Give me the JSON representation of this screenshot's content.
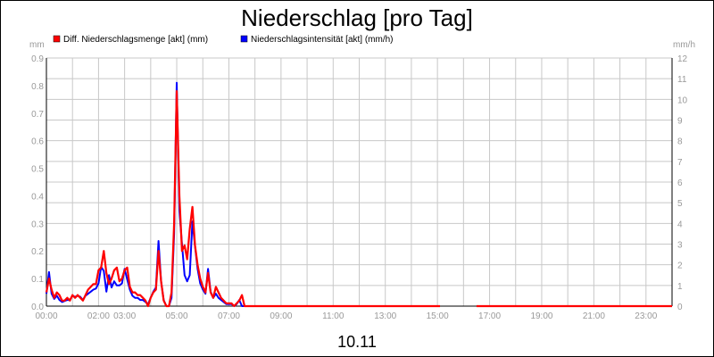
{
  "chart_data": {
    "type": "line",
    "title": "Niederschlag [pro Tag]",
    "ylabel_left": "mm",
    "ylabel_right": "mm/h",
    "date_label": "10.11",
    "ylim_left": [
      0,
      0.9
    ],
    "ylim_right": [
      0,
      12
    ],
    "xlim_hours": [
      0,
      24
    ],
    "yticks_left": [
      "0.0",
      "0.1",
      "0.2",
      "0.3",
      "0.4",
      "0.5",
      "0.6",
      "0.7",
      "0.8",
      "0.9"
    ],
    "yticks_right": [
      "0",
      "1",
      "2",
      "3",
      "4",
      "5",
      "6",
      "7",
      "8",
      "9",
      "10",
      "11",
      "12"
    ],
    "xticks": [
      {
        "h": 0,
        "label": "00:00"
      },
      {
        "h": 2,
        "label": "02:00"
      },
      {
        "h": 3,
        "label": "03:00"
      },
      {
        "h": 5,
        "label": "05:00"
      },
      {
        "h": 7,
        "label": "07:00"
      },
      {
        "h": 9,
        "label": "09:00"
      },
      {
        "h": 11,
        "label": "11:00"
      },
      {
        "h": 13,
        "label": "13:00"
      },
      {
        "h": 15,
        "label": "15:00"
      },
      {
        "h": 17,
        "label": "17:00"
      },
      {
        "h": 19,
        "label": "19:00"
      },
      {
        "h": 21,
        "label": "21:00"
      },
      {
        "h": 23,
        "label": "23:00"
      }
    ],
    "grid": true,
    "legend_position": "top-left",
    "series": [
      {
        "name": "Diff. Niederschlagsmenge [akt] (mm)",
        "color": "#ff0000",
        "axis": "left",
        "segments": [
          [
            [
              0.0,
              0.05
            ],
            [
              0.1,
              0.1
            ],
            [
              0.2,
              0.06
            ],
            [
              0.3,
              0.03
            ],
            [
              0.4,
              0.05
            ],
            [
              0.5,
              0.04
            ],
            [
              0.6,
              0.02
            ],
            [
              0.7,
              0.02
            ],
            [
              0.8,
              0.03
            ],
            [
              0.9,
              0.02
            ],
            [
              1.0,
              0.04
            ],
            [
              1.1,
              0.03
            ],
            [
              1.2,
              0.04
            ],
            [
              1.3,
              0.03
            ],
            [
              1.4,
              0.02
            ],
            [
              1.5,
              0.04
            ],
            [
              1.6,
              0.06
            ],
            [
              1.7,
              0.07
            ],
            [
              1.8,
              0.08
            ],
            [
              1.9,
              0.08
            ],
            [
              2.0,
              0.13
            ],
            [
              2.1,
              0.14
            ],
            [
              2.2,
              0.2
            ],
            [
              2.3,
              0.12
            ],
            [
              2.4,
              0.08
            ],
            [
              2.5,
              0.1
            ],
            [
              2.6,
              0.13
            ],
            [
              2.7,
              0.14
            ],
            [
              2.8,
              0.09
            ],
            [
              2.9,
              0.1
            ],
            [
              3.0,
              0.13
            ],
            [
              3.1,
              0.14
            ],
            [
              3.2,
              0.07
            ],
            [
              3.3,
              0.05
            ],
            [
              3.4,
              0.05
            ],
            [
              3.5,
              0.04
            ],
            [
              3.6,
              0.04
            ],
            [
              3.7,
              0.03
            ],
            [
              3.8,
              0.02
            ],
            [
              3.9,
              0.0
            ],
            [
              4.0,
              0.03
            ],
            [
              4.1,
              0.05
            ],
            [
              4.2,
              0.06
            ],
            [
              4.3,
              0.2
            ],
            [
              4.4,
              0.09
            ],
            [
              4.5,
              0.02
            ],
            [
              4.6,
              0.0
            ],
            [
              4.7,
              0.0
            ],
            [
              4.8,
              0.05
            ],
            [
              4.9,
              0.3
            ],
            [
              5.0,
              0.78
            ],
            [
              5.1,
              0.4
            ],
            [
              5.2,
              0.2
            ],
            [
              5.3,
              0.22
            ],
            [
              5.4,
              0.17
            ],
            [
              5.5,
              0.28
            ],
            [
              5.6,
              0.36
            ],
            [
              5.7,
              0.22
            ],
            [
              5.8,
              0.15
            ],
            [
              5.9,
              0.1
            ],
            [
              6.0,
              0.07
            ],
            [
              6.1,
              0.05
            ],
            [
              6.2,
              0.12
            ],
            [
              6.3,
              0.05
            ],
            [
              6.4,
              0.03
            ],
            [
              6.5,
              0.07
            ],
            [
              6.6,
              0.05
            ],
            [
              6.7,
              0.03
            ],
            [
              6.8,
              0.02
            ],
            [
              6.9,
              0.01
            ],
            [
              7.0,
              0.01
            ],
            [
              7.1,
              0.01
            ],
            [
              7.2,
              0.0
            ],
            [
              7.3,
              0.01
            ],
            [
              7.4,
              0.02
            ],
            [
              7.5,
              0.04
            ],
            [
              7.6,
              0.0
            ],
            [
              8.0,
              0.0
            ],
            [
              9.0,
              0.0
            ],
            [
              10.0,
              0.0
            ],
            [
              11.0,
              0.0
            ],
            [
              12.0,
              0.0
            ],
            [
              13.0,
              0.0
            ],
            [
              14.0,
              0.0
            ],
            [
              15.0,
              0.0
            ],
            [
              15.1,
              0.0
            ]
          ],
          [
            [
              16.5,
              0.0
            ],
            [
              17.0,
              0.0
            ],
            [
              18.0,
              0.0
            ],
            [
              19.0,
              0.0
            ],
            [
              20.0,
              0.0
            ],
            [
              21.0,
              0.0
            ],
            [
              22.0,
              0.0
            ],
            [
              23.0,
              0.0
            ],
            [
              24.0,
              0.0
            ]
          ]
        ]
      },
      {
        "name": "Niederschlagsintensität [akt] (mm/h)",
        "color": "#0000ff",
        "axis": "right",
        "segments": [
          [
            [
              0.0,
              0.6
            ],
            [
              0.1,
              1.65
            ],
            [
              0.2,
              0.6
            ],
            [
              0.3,
              0.35
            ],
            [
              0.4,
              0.5
            ],
            [
              0.5,
              0.3
            ],
            [
              0.6,
              0.2
            ],
            [
              0.7,
              0.25
            ],
            [
              0.8,
              0.3
            ],
            [
              0.9,
              0.3
            ],
            [
              1.0,
              0.5
            ],
            [
              1.1,
              0.45
            ],
            [
              1.2,
              0.5
            ],
            [
              1.3,
              0.45
            ],
            [
              1.4,
              0.3
            ],
            [
              1.5,
              0.5
            ],
            [
              1.6,
              0.6
            ],
            [
              1.7,
              0.7
            ],
            [
              1.8,
              0.8
            ],
            [
              1.9,
              0.85
            ],
            [
              2.0,
              1.1
            ],
            [
              2.1,
              1.9
            ],
            [
              2.2,
              1.7
            ],
            [
              2.3,
              0.7
            ],
            [
              2.4,
              1.5
            ],
            [
              2.5,
              0.9
            ],
            [
              2.6,
              1.2
            ],
            [
              2.7,
              1.0
            ],
            [
              2.8,
              1.0
            ],
            [
              2.9,
              1.1
            ],
            [
              3.0,
              1.8
            ],
            [
              3.1,
              1.3
            ],
            [
              3.2,
              0.8
            ],
            [
              3.3,
              0.5
            ],
            [
              3.4,
              0.4
            ],
            [
              3.5,
              0.4
            ],
            [
              3.6,
              0.3
            ],
            [
              3.7,
              0.3
            ],
            [
              3.8,
              0.2
            ],
            [
              3.9,
              0.1
            ],
            [
              4.0,
              0.4
            ],
            [
              4.1,
              0.7
            ],
            [
              4.2,
              0.9
            ],
            [
              4.3,
              3.15
            ],
            [
              4.4,
              1.2
            ],
            [
              4.5,
              0.3
            ],
            [
              4.6,
              0.0
            ],
            [
              4.7,
              0.0
            ],
            [
              4.8,
              0.4
            ],
            [
              4.9,
              3.5
            ],
            [
              5.0,
              10.8
            ],
            [
              5.1,
              4.6
            ],
            [
              5.2,
              3.0
            ],
            [
              5.3,
              1.5
            ],
            [
              5.4,
              1.2
            ],
            [
              5.5,
              1.5
            ],
            [
              5.6,
              4.1
            ],
            [
              5.7,
              2.9
            ],
            [
              5.8,
              1.8
            ],
            [
              5.9,
              1.1
            ],
            [
              6.0,
              0.8
            ],
            [
              6.1,
              0.6
            ],
            [
              6.2,
              1.8
            ],
            [
              6.3,
              0.7
            ],
            [
              6.4,
              0.4
            ],
            [
              6.5,
              0.6
            ],
            [
              6.6,
              0.4
            ],
            [
              6.7,
              0.3
            ],
            [
              6.8,
              0.2
            ],
            [
              6.9,
              0.1
            ],
            [
              7.0,
              0.1
            ],
            [
              7.1,
              0.1
            ],
            [
              7.2,
              0.0
            ],
            [
              7.3,
              0.1
            ],
            [
              7.4,
              0.3
            ],
            [
              7.5,
              0.0
            ],
            [
              7.6,
              0.0
            ]
          ]
        ]
      }
    ]
  }
}
